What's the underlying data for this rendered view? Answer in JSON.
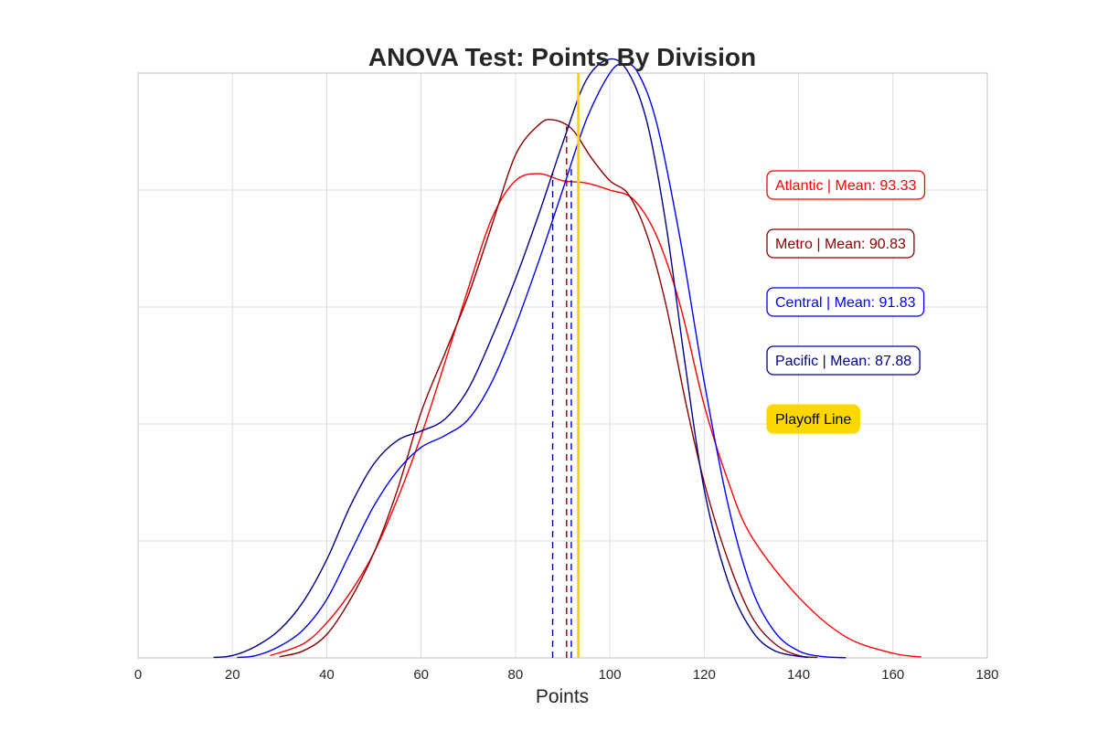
{
  "chart_data": {
    "type": "line",
    "title": "ANOVA Test: Points By Division",
    "xlabel": "Points",
    "ylabel": "",
    "xlim": [
      0,
      180
    ],
    "ylim": [
      0,
      0.025
    ],
    "x_ticks": [
      0,
      20,
      40,
      60,
      80,
      100,
      120,
      140,
      160,
      180
    ],
    "y_tick_labels_shown": false,
    "grid": true,
    "series": [
      {
        "name": "Atlantic",
        "color": "#ff0000",
        "mean": 93.33,
        "legend_label": "Atlantic | Mean: 93.33",
        "points": [
          [
            28,
            0.0001
          ],
          [
            35,
            0.0006
          ],
          [
            40,
            0.0015
          ],
          [
            45,
            0.0028
          ],
          [
            50,
            0.0045
          ],
          [
            55,
            0.0068
          ],
          [
            60,
            0.0095
          ],
          [
            65,
            0.0126
          ],
          [
            70,
            0.0158
          ],
          [
            75,
            0.0188
          ],
          [
            80,
            0.0204
          ],
          [
            85,
            0.0207
          ],
          [
            90,
            0.0204
          ],
          [
            95,
            0.0203
          ],
          [
            100,
            0.02
          ],
          [
            105,
            0.0196
          ],
          [
            110,
            0.018
          ],
          [
            115,
            0.015
          ],
          [
            120,
            0.0108
          ],
          [
            125,
            0.0076
          ],
          [
            130,
            0.0052
          ],
          [
            140,
            0.0026
          ],
          [
            150,
            0.0009
          ],
          [
            160,
            0.0002
          ],
          [
            166,
            4e-05
          ]
        ]
      },
      {
        "name": "Metro",
        "color": "#8b0000",
        "mean": 90.83,
        "legend_label": "Metro | Mean: 90.83",
        "points": [
          [
            30,
            5e-05
          ],
          [
            35,
            0.0003
          ],
          [
            40,
            0.001
          ],
          [
            45,
            0.0025
          ],
          [
            50,
            0.0045
          ],
          [
            55,
            0.0072
          ],
          [
            60,
            0.0105
          ],
          [
            65,
            0.013
          ],
          [
            70,
            0.0155
          ],
          [
            75,
            0.0185
          ],
          [
            80,
            0.0215
          ],
          [
            85,
            0.0228
          ],
          [
            88,
            0.023
          ],
          [
            92,
            0.0226
          ],
          [
            96,
            0.0214
          ],
          [
            100,
            0.0204
          ],
          [
            104,
            0.0198
          ],
          [
            108,
            0.018
          ],
          [
            112,
            0.015
          ],
          [
            116,
            0.011
          ],
          [
            120,
            0.0075
          ],
          [
            125,
            0.0042
          ],
          [
            130,
            0.0018
          ],
          [
            135,
            0.0006
          ],
          [
            140,
            0.0001
          ],
          [
            144,
            2e-05
          ]
        ]
      },
      {
        "name": "Central",
        "color": "#0000ff",
        "mean": 91.83,
        "legend_label": "Central | Mean: 91.83",
        "points": [
          [
            21,
            2e-05
          ],
          [
            25,
            0.0001
          ],
          [
            30,
            0.0005
          ],
          [
            35,
            0.0012
          ],
          [
            40,
            0.0025
          ],
          [
            45,
            0.0045
          ],
          [
            50,
            0.0065
          ],
          [
            55,
            0.008
          ],
          [
            60,
            0.009
          ],
          [
            65,
            0.0095
          ],
          [
            70,
            0.0102
          ],
          [
            75,
            0.0118
          ],
          [
            80,
            0.0142
          ],
          [
            85,
            0.017
          ],
          [
            90,
            0.02
          ],
          [
            95,
            0.023
          ],
          [
            100,
            0.025
          ],
          [
            103,
            0.0254
          ],
          [
            106,
            0.025
          ],
          [
            110,
            0.0228
          ],
          [
            115,
            0.0178
          ],
          [
            120,
            0.0118
          ],
          [
            125,
            0.0066
          ],
          [
            130,
            0.003
          ],
          [
            135,
            0.0011
          ],
          [
            140,
            0.0003
          ],
          [
            145,
            6e-05
          ],
          [
            150,
            1e-05
          ]
        ]
      },
      {
        "name": "Pacific",
        "color": "#00008b",
        "mean": 87.88,
        "legend_label": "Pacific | Mean: 87.88",
        "points": [
          [
            16,
            2e-05
          ],
          [
            20,
            0.0001
          ],
          [
            25,
            0.0005
          ],
          [
            30,
            0.0012
          ],
          [
            35,
            0.0024
          ],
          [
            40,
            0.0042
          ],
          [
            45,
            0.0065
          ],
          [
            50,
            0.0083
          ],
          [
            55,
            0.0093
          ],
          [
            60,
            0.0097
          ],
          [
            65,
            0.0102
          ],
          [
            70,
            0.0115
          ],
          [
            75,
            0.0137
          ],
          [
            80,
            0.0162
          ],
          [
            85,
            0.019
          ],
          [
            90,
            0.022
          ],
          [
            95,
            0.0247
          ],
          [
            100,
            0.0256
          ],
          [
            104,
            0.025
          ],
          [
            108,
            0.0228
          ],
          [
            112,
            0.0184
          ],
          [
            116,
            0.0125
          ],
          [
            120,
            0.0072
          ],
          [
            125,
            0.0033
          ],
          [
            130,
            0.0012
          ],
          [
            135,
            0.0003
          ],
          [
            142,
            2e-05
          ]
        ]
      }
    ],
    "playoff_line": {
      "label": "Playoff Line",
      "x": 93.33,
      "color": "#ffd700"
    },
    "legend_placement": "right"
  }
}
